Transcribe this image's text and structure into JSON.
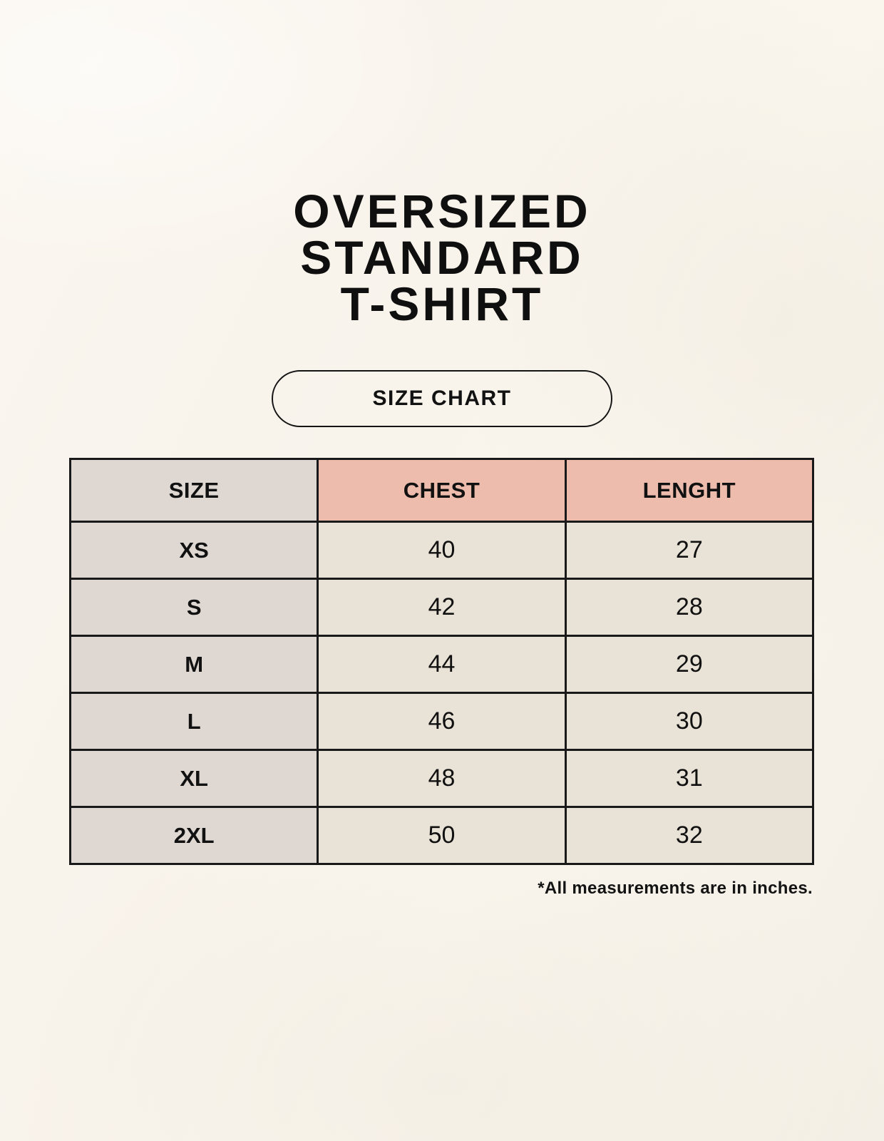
{
  "page": {
    "background_color": "#f8f4ec",
    "text_color": "#111111"
  },
  "title": {
    "lines": [
      "OVERSIZED",
      "STANDARD",
      "T-SHIRT"
    ]
  },
  "size_chart_button": {
    "label": "SIZE CHART"
  },
  "table": {
    "headers": {
      "size": "SIZE",
      "chest": "CHEST",
      "length": "LENGHT"
    },
    "rows": [
      {
        "size": "XS",
        "chest": "40",
        "length": "27"
      },
      {
        "size": "S",
        "chest": "42",
        "length": "28"
      },
      {
        "size": "M",
        "chest": "44",
        "length": "29"
      },
      {
        "size": "L",
        "chest": "46",
        "length": "30"
      },
      {
        "size": "XL",
        "chest": "48",
        "length": "31"
      },
      {
        "size": "2XL",
        "chest": "50",
        "length": "32"
      }
    ],
    "colors": {
      "size_column_bg": "#ded7d2",
      "header_accent_bg": "#eebcad",
      "data_cell_bg": "#e9e2d6",
      "border": "#191919"
    }
  },
  "footnote": {
    "text": "*All measurements are in inches."
  }
}
